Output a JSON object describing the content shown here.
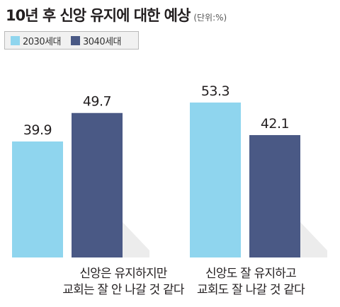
{
  "title": "10년 후 신앙 유지에 대한 예상",
  "unit": "(단위:%)",
  "colors": {
    "series1": "#8fd5ee",
    "series2": "#4a5985"
  },
  "chart_data": {
    "type": "bar",
    "title": "10년 후 신앙 유지에 대한 예상",
    "unit": "(단위:%)",
    "categories": [
      [
        "신앙은 유지하지만",
        "교회는 잘 안 나갈 것 같다"
      ],
      [
        "신앙도 잘 유지하고",
        "교회도 잘 나갈 것 같다"
      ]
    ],
    "series": [
      {
        "name": "2030세대",
        "values": [
          39.9,
          53.3
        ],
        "labels": [
          "39.9",
          "53.3"
        ]
      },
      {
        "name": "3040세대",
        "values": [
          49.7,
          42.1
        ],
        "labels": [
          "49.7",
          "42.1"
        ]
      }
    ],
    "ylim": [
      0,
      60
    ],
    "grid": false,
    "legend": "top-left"
  }
}
